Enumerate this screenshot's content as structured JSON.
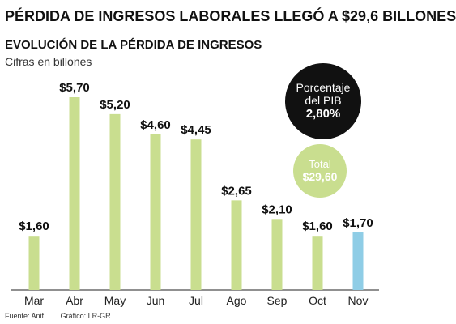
{
  "headline": "PÉRDIDA DE INGRESOS LABORALES LLEGÓ A $29,6 BILLONES",
  "colors": {
    "bar": "#c9de8f",
    "bar_highlight": "#8fcde6",
    "total_bubble": "#c9de8f",
    "pib_bubble": "#111111",
    "axis": "#222222"
  },
  "callouts": {
    "pib": {
      "label": "Porcentaje del PIB",
      "value": "2,80%"
    },
    "total": {
      "label": "Total",
      "value": "$29,60"
    }
  },
  "footer": {
    "source": "Fuente: Anif",
    "graphic": "Gráfico: LR-GR"
  },
  "chart_data": {
    "type": "bar",
    "title": "EVOLUCIÓN DE LA PÉRDIDA DE INGRESOS",
    "subtitle": "Cifras en billones",
    "xlabel": "",
    "ylabel": "",
    "ylim": [
      0,
      5.7
    ],
    "grid": false,
    "categories": [
      "Mar",
      "Abr",
      "May",
      "Jun",
      "Jul",
      "Ago",
      "Sep",
      "Oct",
      "Nov"
    ],
    "values": [
      1.6,
      5.7,
      5.2,
      4.6,
      4.45,
      2.65,
      2.1,
      1.6,
      1.7
    ],
    "data_labels": [
      "$1,60",
      "$5,70",
      "$5,20",
      "$4,60",
      "$4,45",
      "$2,65",
      "$2,10",
      "$1,60",
      "$1,70"
    ],
    "highlight_categories": [
      "Nov"
    ]
  }
}
